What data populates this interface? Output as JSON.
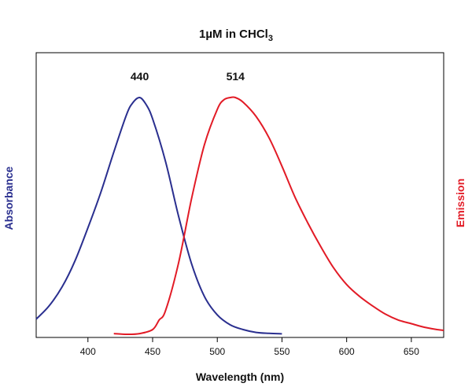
{
  "chart_data": {
    "type": "line",
    "title": "1µM in CHCl",
    "title_subscript": "3",
    "xlabel": "Wavelength (nm)",
    "ylabel_left": "Absorbance",
    "ylabel_right": "Emission",
    "xlim": [
      360,
      675
    ],
    "ylim": [
      0,
      1
    ],
    "x_ticks": [
      400,
      450,
      500,
      550,
      600,
      650
    ],
    "y_ticks_shown": false,
    "grid": false,
    "series": [
      {
        "color": "#2a2f8f",
        "x": [
          360,
          370,
          380,
          390,
          400,
          410,
          420,
          430,
          435,
          440,
          445,
          450,
          460,
          470,
          480,
          490,
          500,
          510,
          520,
          530,
          540,
          550
        ],
        "y": [
          0.064,
          0.12,
          0.2,
          0.31,
          0.45,
          0.6,
          0.77,
          0.93,
          0.98,
          1.0,
          0.97,
          0.91,
          0.73,
          0.5,
          0.3,
          0.16,
          0.082,
          0.04,
          0.02,
          0.008,
          0.004,
          0.002
        ]
      },
      {
        "color": "#e21b26",
        "x": [
          420,
          430,
          440,
          450,
          455,
          460,
          470,
          480,
          490,
          500,
          505,
          510,
          514,
          520,
          530,
          540,
          550,
          560,
          570,
          580,
          590,
          600,
          610,
          620,
          630,
          640,
          650,
          660,
          670,
          675
        ],
        "y": [
          0.003,
          0.0,
          0.003,
          0.02,
          0.06,
          0.1,
          0.3,
          0.57,
          0.8,
          0.95,
          0.99,
          1.0,
          1.0,
          0.98,
          0.92,
          0.83,
          0.71,
          0.58,
          0.47,
          0.37,
          0.28,
          0.21,
          0.16,
          0.12,
          0.085,
          0.06,
          0.045,
          0.03,
          0.02,
          0.017
        ]
      }
    ],
    "annotations": [
      {
        "text": "440",
        "x": 440
      },
      {
        "text": "514",
        "x": 514
      }
    ],
    "colors": {
      "absorbance": "#2a2f8f",
      "emission": "#e21b26",
      "frame": "#000000"
    }
  }
}
